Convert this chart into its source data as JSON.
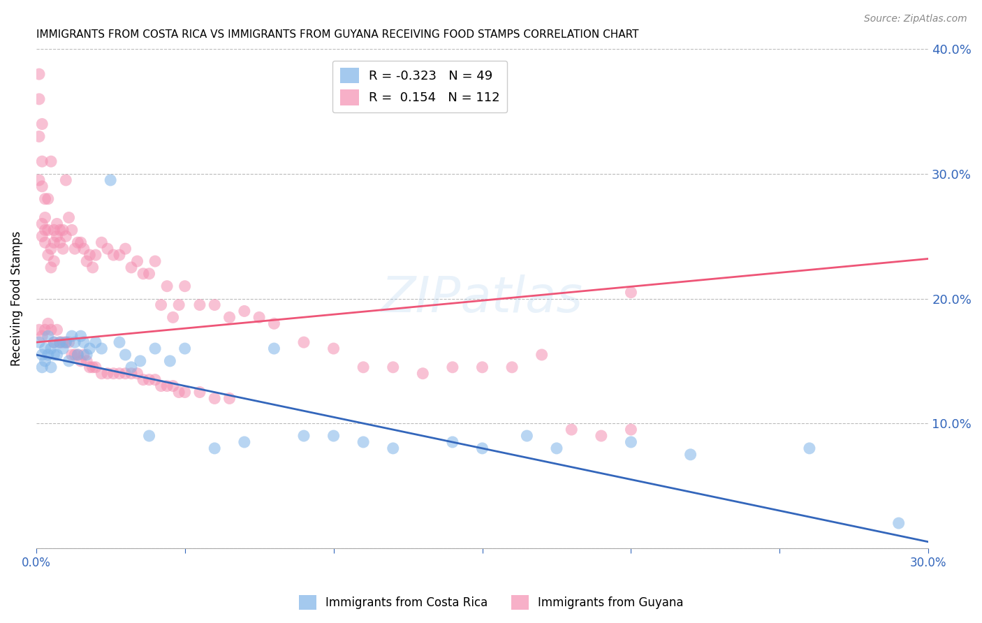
{
  "title": "IMMIGRANTS FROM COSTA RICA VS IMMIGRANTS FROM GUYANA RECEIVING FOOD STAMPS CORRELATION CHART",
  "source": "Source: ZipAtlas.com",
  "ylabel": "Receiving Food Stamps",
  "xlim": [
    0.0,
    0.3
  ],
  "ylim": [
    0.0,
    0.4
  ],
  "xticks": [
    0.0,
    0.05,
    0.1,
    0.15,
    0.2,
    0.25,
    0.3
  ],
  "xtick_labels": [
    "0.0%",
    "",
    "",
    "",
    "",
    "",
    "30.0%"
  ],
  "yticks": [
    0.0,
    0.1,
    0.2,
    0.3,
    0.4
  ],
  "costa_rica_R": -0.323,
  "costa_rica_N": 49,
  "guyana_R": 0.154,
  "guyana_N": 112,
  "blue_color": "#7EB3E8",
  "pink_color": "#F48FB1",
  "blue_line_color": "#3366BB",
  "pink_line_color": "#EE5577",
  "watermark": "ZIPatlas",
  "background_color": "#FFFFFF",
  "grid_color": "#BBBBBB",
  "axis_label_color": "#3366BB",
  "blue_trend_x0": 0.0,
  "blue_trend_y0": 0.155,
  "blue_trend_x1": 0.3,
  "blue_trend_y1": 0.005,
  "pink_trend_x0": 0.0,
  "pink_trend_y0": 0.165,
  "pink_trend_x1": 0.3,
  "pink_trend_y1": 0.232,
  "costa_rica_x": [
    0.001,
    0.002,
    0.002,
    0.003,
    0.003,
    0.004,
    0.004,
    0.005,
    0.005,
    0.006,
    0.006,
    0.007,
    0.008,
    0.009,
    0.01,
    0.011,
    0.012,
    0.013,
    0.014,
    0.015,
    0.016,
    0.017,
    0.018,
    0.02,
    0.022,
    0.025,
    0.028,
    0.03,
    0.032,
    0.035,
    0.038,
    0.04,
    0.045,
    0.05,
    0.06,
    0.07,
    0.08,
    0.09,
    0.1,
    0.11,
    0.12,
    0.14,
    0.15,
    0.165,
    0.175,
    0.2,
    0.22,
    0.26,
    0.29
  ],
  "costa_rica_y": [
    0.165,
    0.155,
    0.145,
    0.16,
    0.15,
    0.17,
    0.155,
    0.16,
    0.145,
    0.155,
    0.165,
    0.155,
    0.165,
    0.16,
    0.165,
    0.15,
    0.17,
    0.165,
    0.155,
    0.17,
    0.165,
    0.155,
    0.16,
    0.165,
    0.16,
    0.295,
    0.165,
    0.155,
    0.145,
    0.15,
    0.09,
    0.16,
    0.15,
    0.16,
    0.08,
    0.085,
    0.16,
    0.09,
    0.09,
    0.085,
    0.08,
    0.085,
    0.08,
    0.09,
    0.08,
    0.085,
    0.075,
    0.08,
    0.02
  ],
  "guyana_x": [
    0.001,
    0.001,
    0.001,
    0.001,
    0.002,
    0.002,
    0.002,
    0.002,
    0.002,
    0.003,
    0.003,
    0.003,
    0.003,
    0.004,
    0.004,
    0.004,
    0.005,
    0.005,
    0.005,
    0.006,
    0.006,
    0.006,
    0.007,
    0.007,
    0.008,
    0.008,
    0.009,
    0.009,
    0.01,
    0.01,
    0.011,
    0.012,
    0.013,
    0.014,
    0.015,
    0.016,
    0.017,
    0.018,
    0.019,
    0.02,
    0.022,
    0.024,
    0.026,
    0.028,
    0.03,
    0.032,
    0.034,
    0.036,
    0.038,
    0.04,
    0.042,
    0.044,
    0.046,
    0.048,
    0.05,
    0.055,
    0.06,
    0.065,
    0.07,
    0.075,
    0.08,
    0.09,
    0.1,
    0.11,
    0.12,
    0.13,
    0.14,
    0.15,
    0.16,
    0.17,
    0.18,
    0.19,
    0.2,
    0.001,
    0.002,
    0.003,
    0.004,
    0.005,
    0.006,
    0.007,
    0.008,
    0.009,
    0.01,
    0.011,
    0.012,
    0.013,
    0.014,
    0.015,
    0.016,
    0.017,
    0.018,
    0.019,
    0.02,
    0.022,
    0.024,
    0.026,
    0.028,
    0.03,
    0.032,
    0.034,
    0.036,
    0.038,
    0.04,
    0.042,
    0.044,
    0.046,
    0.048,
    0.05,
    0.055,
    0.06,
    0.065,
    0.2
  ],
  "guyana_y": [
    0.38,
    0.36,
    0.33,
    0.295,
    0.34,
    0.31,
    0.29,
    0.26,
    0.25,
    0.28,
    0.265,
    0.255,
    0.245,
    0.255,
    0.235,
    0.28,
    0.225,
    0.24,
    0.31,
    0.255,
    0.245,
    0.23,
    0.25,
    0.26,
    0.245,
    0.255,
    0.24,
    0.255,
    0.25,
    0.295,
    0.265,
    0.255,
    0.24,
    0.245,
    0.245,
    0.24,
    0.23,
    0.235,
    0.225,
    0.235,
    0.245,
    0.24,
    0.235,
    0.235,
    0.24,
    0.225,
    0.23,
    0.22,
    0.22,
    0.23,
    0.195,
    0.21,
    0.185,
    0.195,
    0.21,
    0.195,
    0.195,
    0.185,
    0.19,
    0.185,
    0.18,
    0.165,
    0.16,
    0.145,
    0.145,
    0.14,
    0.145,
    0.145,
    0.145,
    0.155,
    0.095,
    0.09,
    0.205,
    0.175,
    0.17,
    0.175,
    0.18,
    0.175,
    0.165,
    0.175,
    0.165,
    0.165,
    0.165,
    0.165,
    0.155,
    0.155,
    0.155,
    0.15,
    0.155,
    0.15,
    0.145,
    0.145,
    0.145,
    0.14,
    0.14,
    0.14,
    0.14,
    0.14,
    0.14,
    0.14,
    0.135,
    0.135,
    0.135,
    0.13,
    0.13,
    0.13,
    0.125,
    0.125,
    0.125,
    0.12,
    0.12,
    0.095
  ]
}
